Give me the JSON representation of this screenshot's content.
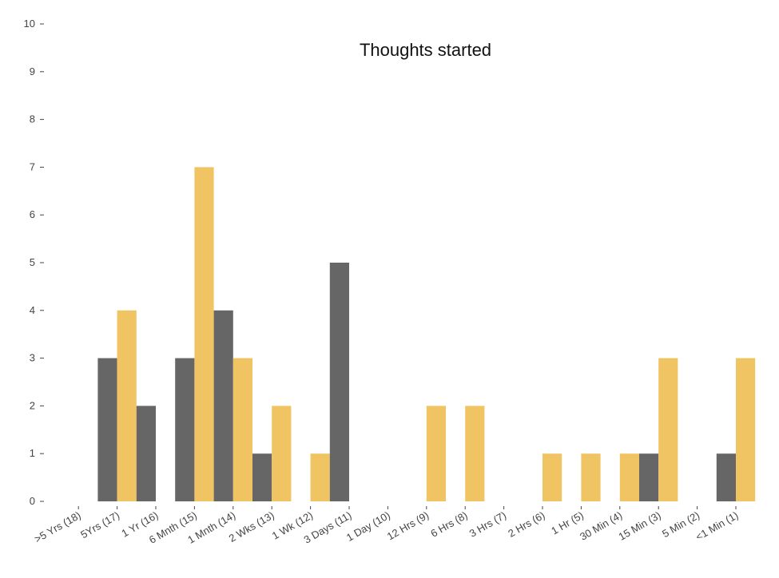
{
  "chart_data": {
    "type": "bar",
    "title": "Thoughts started",
    "xlabel": "",
    "ylabel": "",
    "ylim": [
      0,
      10
    ],
    "yticks": [
      "0",
      "1",
      "2",
      "3",
      "4",
      "5",
      "6",
      "7",
      "8",
      "9",
      "10"
    ],
    "categories": [
      ">5 Yrs (18)",
      "5Yrs (17)",
      "1 Yr (16)",
      "6 Mnth (15)",
      "1 Mnth (14)",
      "2 Wks (13)",
      "1 Wk (12)",
      "3 Days (11)",
      "1 Day (10)",
      "12 Hrs (9)",
      "6 Hrs (8)",
      "3 Hrs (7)",
      "2 Hrs (6)",
      "1 Hr (5)",
      "30 Min (4)",
      "15 Min (3)",
      "5 Min (2)",
      "<1 Min (1)"
    ],
    "series": [
      {
        "color": "#666666",
        "values": [
          0,
          3,
          2,
          3,
          4,
          1,
          0,
          5,
          0,
          0,
          0,
          0,
          0,
          0,
          0,
          1,
          0,
          1
        ]
      },
      {
        "color": "#F0C463",
        "values": [
          0,
          4,
          0,
          7,
          3,
          2,
          1,
          0,
          0,
          2,
          2,
          0,
          1,
          1,
          1,
          3,
          0,
          3
        ]
      }
    ],
    "grid": false,
    "legend": "none"
  }
}
